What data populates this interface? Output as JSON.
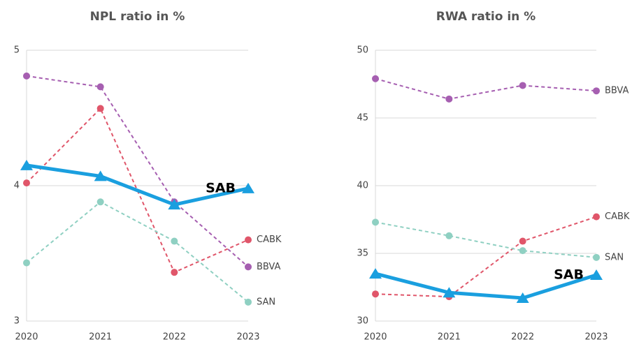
{
  "chart_data": [
    {
      "type": "line",
      "title": "NPL ratio in %",
      "x": [
        "2020",
        "2021",
        "2022",
        "2023"
      ],
      "ylim": [
        3,
        5
      ],
      "yticks": [
        3,
        4,
        5
      ],
      "grid": true,
      "series": [
        {
          "name": "BBVA",
          "color": "#a65fb1",
          "values": [
            4.81,
            4.73,
            3.88,
            3.4
          ]
        },
        {
          "name": "CABK",
          "color": "#e0566a",
          "values": [
            4.02,
            4.57,
            3.36,
            3.6
          ]
        },
        {
          "name": "SAN",
          "color": "#8fd0c2",
          "values": [
            3.43,
            3.88,
            3.59,
            3.14
          ]
        },
        {
          "name": "SAB",
          "color": "#1a9fdf",
          "values": [
            4.15,
            4.07,
            3.86,
            3.98
          ]
        }
      ]
    },
    {
      "type": "line",
      "title": "RWA ratio in %",
      "x": [
        "2020",
        "2021",
        "2022",
        "2023"
      ],
      "ylim": [
        30,
        50
      ],
      "yticks": [
        30,
        35,
        40,
        45,
        50
      ],
      "grid": true,
      "series": [
        {
          "name": "BBVA",
          "color": "#a65fb1",
          "values": [
            47.9,
            46.4,
            47.4,
            47.0
          ]
        },
        {
          "name": "CABK",
          "color": "#e0566a",
          "values": [
            32.0,
            31.8,
            35.9,
            37.7
          ]
        },
        {
          "name": "SAN",
          "color": "#8fd0c2",
          "values": [
            37.3,
            36.3,
            35.2,
            34.7
          ]
        },
        {
          "name": "SAB",
          "color": "#1a9fdf",
          "values": [
            33.5,
            32.1,
            31.7,
            33.4
          ]
        }
      ]
    }
  ]
}
